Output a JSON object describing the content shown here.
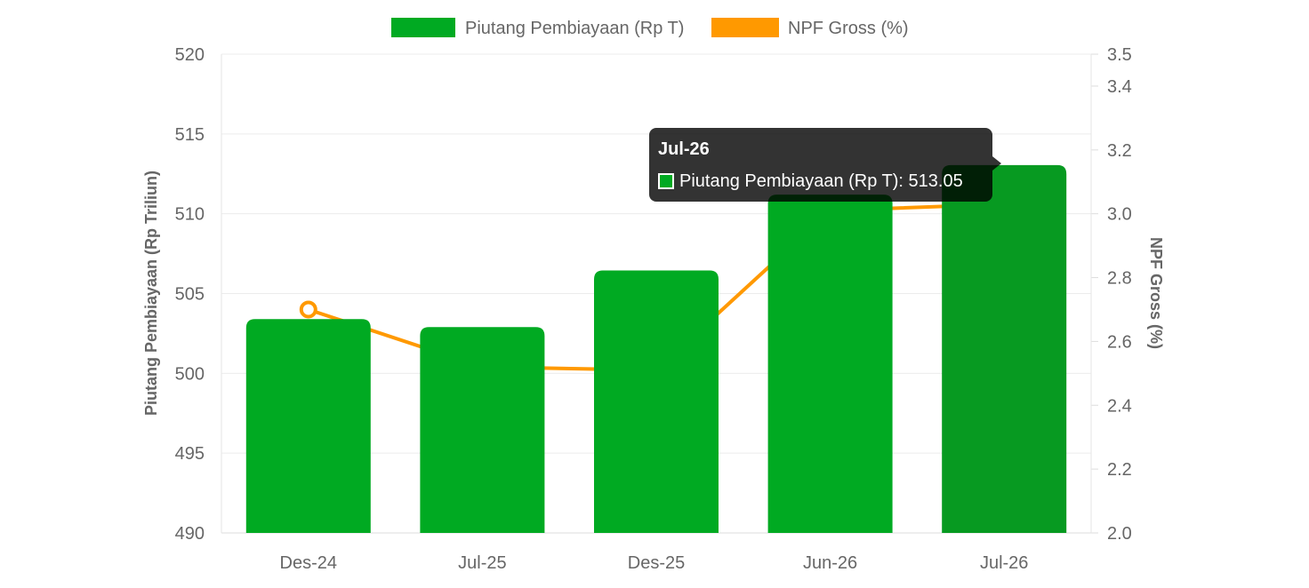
{
  "chart_data": {
    "type": "bar",
    "categories": [
      "Des-24",
      "Jul-25",
      "Des-25",
      "Jun-26",
      "Jul-26"
    ],
    "series": [
      {
        "name": "Piutang Pembiayaan (Rp T)",
        "type": "bar",
        "axis": "left",
        "color": "#00aa22",
        "hover_color": "#079a21",
        "values": [
          503.4,
          502.9,
          506.45,
          511.2,
          513.05
        ]
      },
      {
        "name": "NPF Gross (%)",
        "type": "line",
        "axis": "right",
        "color": "#ff9900",
        "values": [
          2.7,
          2.52,
          2.51,
          3.01,
          3.03
        ]
      }
    ],
    "y_left": {
      "label": "Piutang Pembiayaan (Rp Triliun)",
      "ylim": [
        490,
        520
      ],
      "ticks": [
        490,
        495,
        500,
        505,
        510,
        515,
        520
      ]
    },
    "y_right": {
      "label": "NPF Gross (%)",
      "ylim": [
        2.0,
        3.5
      ],
      "ticks": [
        "2.0",
        "2.2",
        "2.4",
        "2.6",
        "2.8",
        "3.0",
        "3.2",
        "3.4",
        "3.5"
      ]
    },
    "grid": true,
    "legend": "top-center",
    "highlighted_point": 0,
    "tooltip": {
      "title": "Jul-26",
      "label": "Piutang Pembiayaan (Rp T): 513.05"
    }
  }
}
